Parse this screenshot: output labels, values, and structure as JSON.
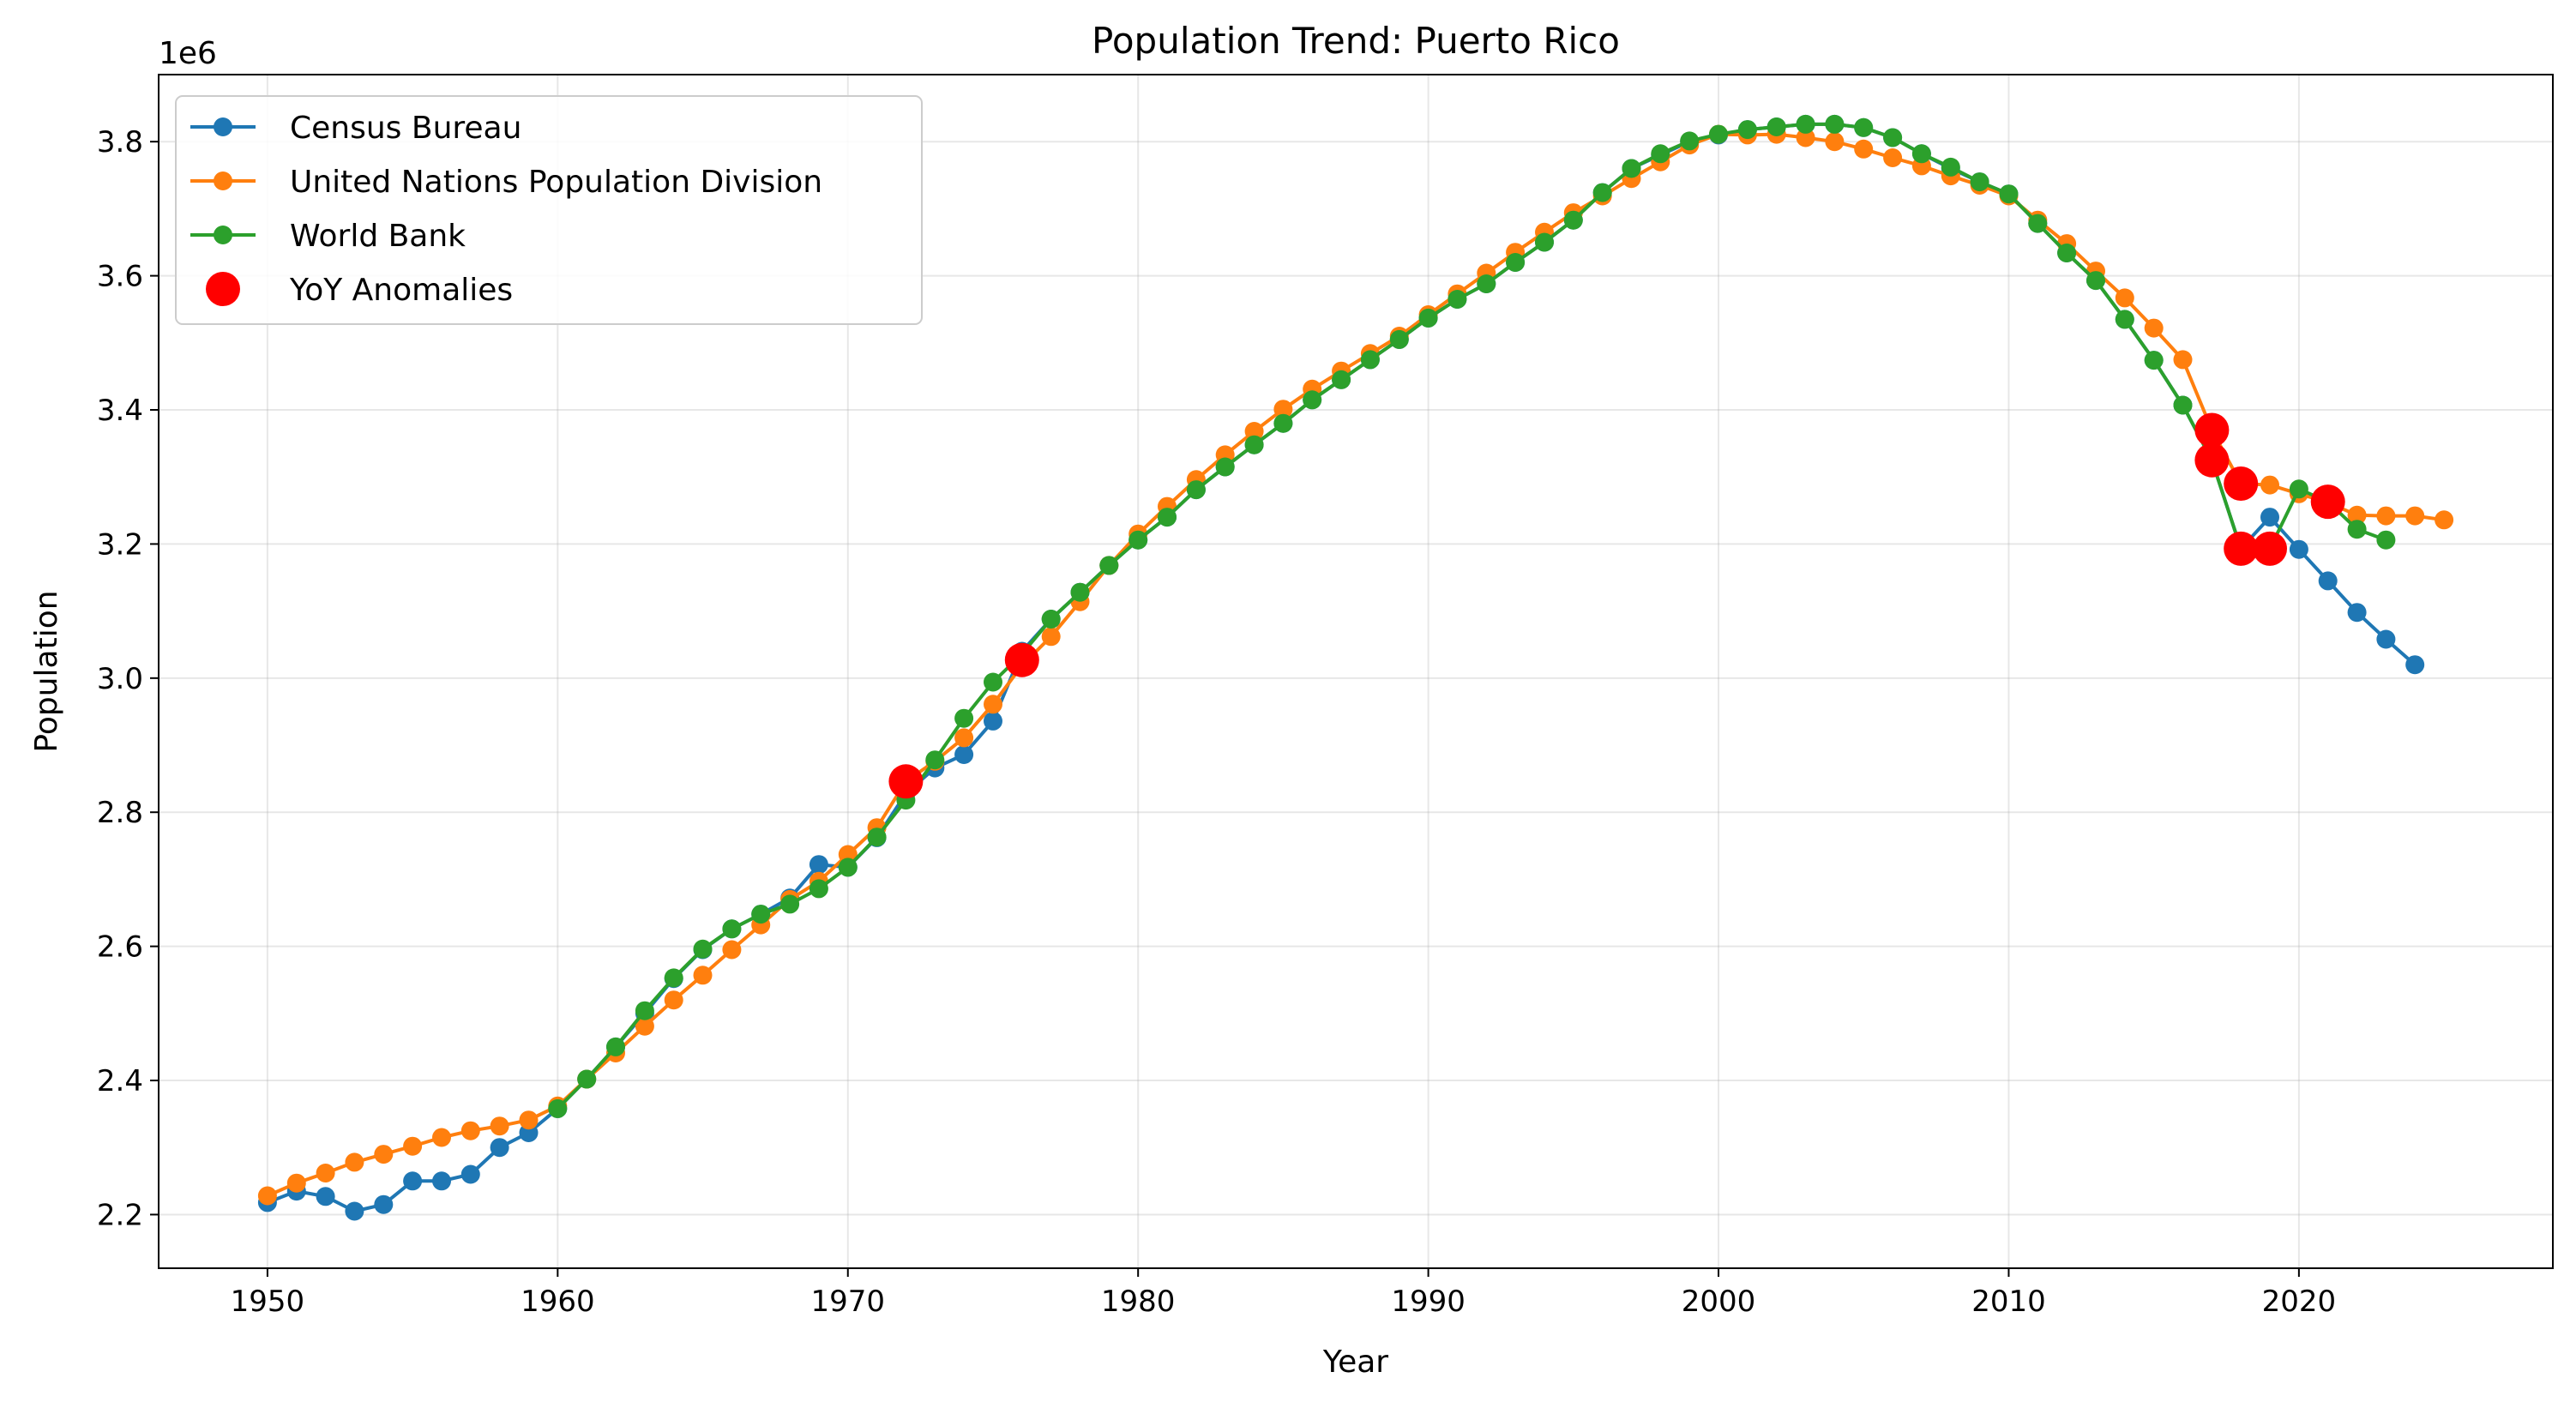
{
  "chart_data": {
    "type": "line",
    "title": "Population Trend: Puerto Rico",
    "xlabel": "Year",
    "ylabel": "Population",
    "y_offset_label": "1e6",
    "xlim": [
      1946.25,
      2028.75
    ],
    "ylim": [
      2.12,
      3.9
    ],
    "x_ticks": [
      1950,
      1960,
      1970,
      1980,
      1990,
      2000,
      2010,
      2020
    ],
    "y_ticks": [
      2.2,
      2.4,
      2.6,
      2.8,
      3.0,
      3.2,
      3.4,
      3.6,
      3.8
    ],
    "y_tick_labels": [
      "2.2",
      "2.4",
      "2.6",
      "2.8",
      "3.0",
      "3.2",
      "3.4",
      "3.6",
      "3.8"
    ],
    "x_tick_labels": [
      "1950",
      "1960",
      "1970",
      "1980",
      "1990",
      "2000",
      "2010",
      "2020"
    ],
    "grid": true,
    "legend_position": "top-left",
    "series": [
      {
        "name": "Census Bureau",
        "color": "#1f77b4",
        "x": [
          1950,
          1951,
          1952,
          1953,
          1954,
          1955,
          1956,
          1957,
          1958,
          1959,
          1960,
          1961,
          1962,
          1963,
          1964,
          1965,
          1966,
          1967,
          1968,
          1969,
          1970,
          1971,
          1972,
          1973,
          1974,
          1975,
          1976,
          1977,
          1978,
          1979,
          1980,
          1981,
          1982,
          1983,
          1984,
          1985,
          1986,
          1987,
          1988,
          1989,
          1990,
          1991,
          1992,
          1993,
          1994,
          1995,
          1996,
          1997,
          1998,
          1999,
          2000,
          2001,
          2002,
          2003,
          2004,
          2005,
          2006,
          2007,
          2008,
          2009,
          2010,
          2011,
          2012,
          2013,
          2014,
          2015,
          2016,
          2017,
          2018,
          2019,
          2020,
          2021,
          2022,
          2023,
          2024
        ],
        "y": [
          2.218,
          2.235,
          2.227,
          2.205,
          2.215,
          2.25,
          2.25,
          2.26,
          2.3,
          2.322,
          2.358,
          2.402,
          2.45,
          2.5,
          2.552,
          2.595,
          2.626,
          2.648,
          2.672,
          2.722,
          2.718,
          2.762,
          2.828,
          2.866,
          2.886,
          2.936,
          3.04,
          3.088,
          3.128,
          3.168,
          3.206,
          3.24,
          3.281,
          3.315,
          3.348,
          3.38,
          3.415,
          3.445,
          3.475,
          3.505,
          3.537,
          3.565,
          3.588,
          3.62,
          3.65,
          3.683,
          3.724,
          3.76,
          3.78,
          3.8,
          3.81,
          3.818,
          3.822,
          3.826,
          3.826,
          3.821,
          3.806,
          3.782,
          3.76,
          3.74,
          3.722,
          3.678,
          3.634,
          3.593,
          3.535,
          3.474,
          3.407,
          3.325,
          3.193,
          3.24,
          3.192,
          3.145,
          3.098,
          3.058,
          3.02
        ]
      },
      {
        "name": "United Nations Population Division",
        "color": "#ff7f0e",
        "x": [
          1950,
          1951,
          1952,
          1953,
          1954,
          1955,
          1956,
          1957,
          1958,
          1959,
          1960,
          1961,
          1962,
          1963,
          1964,
          1965,
          1966,
          1967,
          1968,
          1969,
          1970,
          1971,
          1972,
          1973,
          1974,
          1975,
          1976,
          1977,
          1978,
          1979,
          1980,
          1981,
          1982,
          1983,
          1984,
          1985,
          1986,
          1987,
          1988,
          1989,
          1990,
          1991,
          1992,
          1993,
          1994,
          1995,
          1996,
          1997,
          1998,
          1999,
          2000,
          2001,
          2002,
          2003,
          2004,
          2005,
          2006,
          2007,
          2008,
          2009,
          2010,
          2011,
          2012,
          2013,
          2014,
          2015,
          2016,
          2017,
          2018,
          2019,
          2020,
          2021,
          2022,
          2023,
          2024,
          2025
        ],
        "y": [
          2.228,
          2.247,
          2.262,
          2.278,
          2.29,
          2.302,
          2.315,
          2.325,
          2.332,
          2.341,
          2.362,
          2.402,
          2.441,
          2.481,
          2.52,
          2.557,
          2.595,
          2.632,
          2.67,
          2.697,
          2.737,
          2.777,
          2.846,
          2.876,
          2.911,
          2.961,
          3.019,
          3.062,
          3.114,
          3.168,
          3.215,
          3.256,
          3.296,
          3.333,
          3.368,
          3.401,
          3.431,
          3.458,
          3.484,
          3.51,
          3.542,
          3.573,
          3.604,
          3.635,
          3.665,
          3.694,
          3.719,
          3.745,
          3.77,
          3.795,
          3.811,
          3.81,
          3.811,
          3.806,
          3.8,
          3.789,
          3.776,
          3.764,
          3.749,
          3.735,
          3.719,
          3.683,
          3.648,
          3.607,
          3.567,
          3.522,
          3.475,
          3.37,
          3.29,
          3.288,
          3.275,
          3.262,
          3.243,
          3.242,
          3.242,
          3.236
        ]
      },
      {
        "name": "World Bank",
        "color": "#2ca02c",
        "x": [
          1960,
          1961,
          1962,
          1963,
          1964,
          1965,
          1966,
          1967,
          1968,
          1969,
          1970,
          1971,
          1972,
          1973,
          1974,
          1975,
          1976,
          1977,
          1978,
          1979,
          1980,
          1981,
          1982,
          1983,
          1984,
          1985,
          1986,
          1987,
          1988,
          1989,
          1990,
          1991,
          1992,
          1993,
          1994,
          1995,
          1996,
          1997,
          1998,
          1999,
          2000,
          2001,
          2002,
          2003,
          2004,
          2005,
          2006,
          2007,
          2008,
          2009,
          2010,
          2011,
          2012,
          2013,
          2014,
          2015,
          2016,
          2017,
          2018,
          2019,
          2020,
          2021,
          2022,
          2023
        ],
        "y": [
          2.358,
          2.402,
          2.45,
          2.504,
          2.553,
          2.596,
          2.626,
          2.648,
          2.663,
          2.686,
          2.718,
          2.763,
          2.818,
          2.878,
          2.94,
          2.994,
          3.036,
          3.088,
          3.128,
          3.168,
          3.206,
          3.24,
          3.281,
          3.315,
          3.348,
          3.38,
          3.415,
          3.445,
          3.475,
          3.505,
          3.537,
          3.565,
          3.588,
          3.62,
          3.65,
          3.683,
          3.724,
          3.76,
          3.782,
          3.801,
          3.811,
          3.818,
          3.822,
          3.826,
          3.826,
          3.821,
          3.806,
          3.782,
          3.762,
          3.74,
          3.722,
          3.678,
          3.634,
          3.593,
          3.535,
          3.474,
          3.407,
          3.325,
          3.193,
          3.193,
          3.282,
          3.263,
          3.222,
          3.206
        ]
      }
    ],
    "anomalies": {
      "name": "YoY Anomalies",
      "color": "#ff0000",
      "points": [
        {
          "x": 1972,
          "y": 2.846
        },
        {
          "x": 1976,
          "y": 3.027
        },
        {
          "x": 2017,
          "y": 3.37
        },
        {
          "x": 2017,
          "y": 3.325
        },
        {
          "x": 2018,
          "y": 3.29
        },
        {
          "x": 2018,
          "y": 3.193
        },
        {
          "x": 2019,
          "y": 3.193
        },
        {
          "x": 2021,
          "y": 3.263
        }
      ]
    }
  }
}
